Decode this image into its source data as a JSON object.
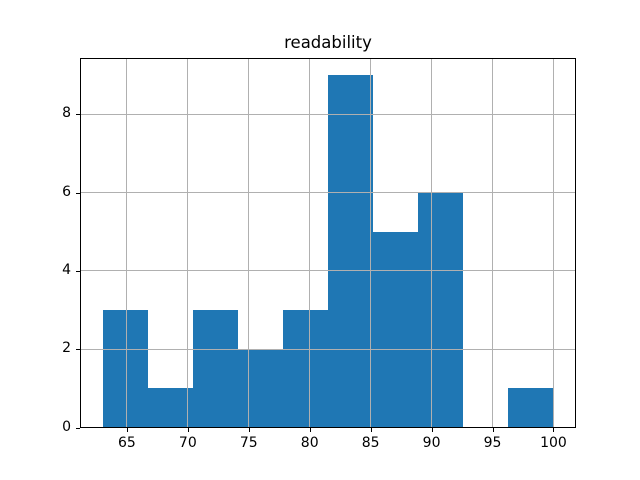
{
  "chart_data": {
    "type": "bar",
    "subtype": "histogram",
    "title": "readability",
    "xlabel": "",
    "ylabel": "",
    "bin_edges": [
      63.0,
      66.7,
      70.4,
      74.1,
      77.8,
      81.5,
      85.2,
      88.9,
      92.6,
      96.3,
      100.0
    ],
    "counts": [
      3,
      1,
      3,
      2,
      3,
      9,
      5,
      6,
      0,
      1
    ],
    "xticks": [
      65,
      70,
      75,
      80,
      85,
      90,
      95,
      100
    ],
    "yticks": [
      0,
      2,
      4,
      6,
      8
    ],
    "xtick_labels": [
      "65",
      "70",
      "75",
      "80",
      "85",
      "90",
      "95",
      "100"
    ],
    "ytick_labels": [
      "0",
      "2",
      "4",
      "6",
      "8"
    ],
    "xlim": [
      61.15,
      101.85
    ],
    "ylim": [
      0,
      9.45
    ],
    "grid": true,
    "legend": null,
    "bar_color": "#1f77b4",
    "grid_color": "#b0b0b0",
    "axes_color": "#000000",
    "text_color": "#000000",
    "background_color": "#ffffff"
  }
}
